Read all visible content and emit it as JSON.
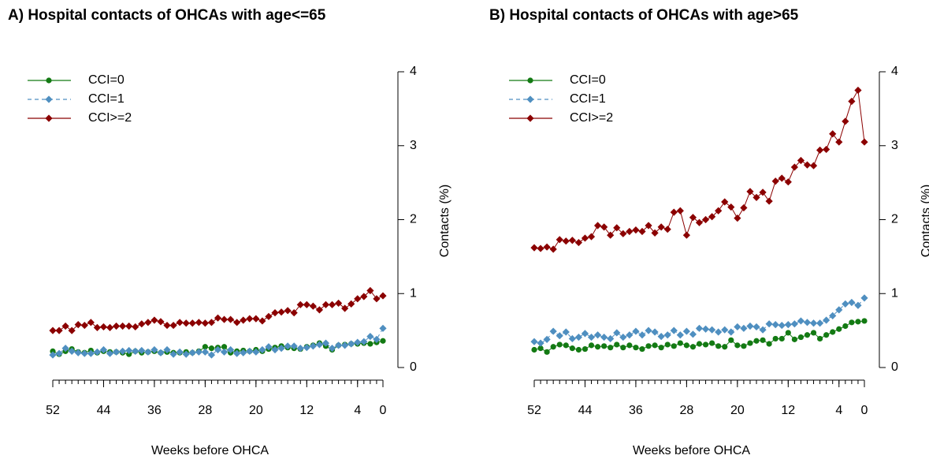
{
  "chart_data": [
    {
      "type": "line",
      "title": "A) Hospital contacts of OHCAs with age<=65",
      "x_label": "Weeks before OHCA",
      "y_label": "Contacts (%)",
      "x": [
        52,
        51,
        50,
        49,
        48,
        47,
        46,
        45,
        44,
        43,
        42,
        41,
        40,
        39,
        38,
        37,
        36,
        35,
        34,
        33,
        32,
        31,
        30,
        29,
        28,
        27,
        26,
        25,
        24,
        23,
        22,
        21,
        20,
        19,
        18,
        17,
        16,
        15,
        14,
        13,
        12,
        11,
        10,
        9,
        8,
        7,
        6,
        5,
        4,
        3,
        2,
        1,
        0
      ],
      "xlim": [
        52,
        0
      ],
      "xticks": [
        52,
        44,
        36,
        28,
        20,
        12,
        4,
        0
      ],
      "ylim": [
        0,
        4
      ],
      "yticks": [
        0,
        1,
        2,
        3,
        4
      ],
      "legend": "top-left",
      "series": [
        {
          "name": "CCI=0",
          "color": "#137a13",
          "values": [
            0.22,
            0.18,
            0.22,
            0.25,
            0.21,
            0.2,
            0.23,
            0.2,
            0.22,
            0.21,
            0.21,
            0.2,
            0.18,
            0.22,
            0.2,
            0.21,
            0.22,
            0.2,
            0.21,
            0.2,
            0.2,
            0.21,
            0.2,
            0.22,
            0.28,
            0.26,
            0.27,
            0.28,
            0.2,
            0.22,
            0.23,
            0.22,
            0.24,
            0.22,
            0.25,
            0.27,
            0.29,
            0.27,
            0.26,
            0.25,
            0.28,
            0.3,
            0.33,
            0.29,
            0.24,
            0.3,
            0.31,
            0.32,
            0.32,
            0.33,
            0.32,
            0.34,
            0.36
          ]
        },
        {
          "name": "CCI=1",
          "color": "#4f8fc0",
          "values": [
            0.17,
            0.19,
            0.26,
            0.22,
            0.2,
            0.19,
            0.19,
            0.21,
            0.24,
            0.19,
            0.21,
            0.22,
            0.23,
            0.22,
            0.23,
            0.21,
            0.24,
            0.2,
            0.24,
            0.18,
            0.21,
            0.18,
            0.2,
            0.21,
            0.21,
            0.17,
            0.24,
            0.21,
            0.24,
            0.19,
            0.2,
            0.22,
            0.21,
            0.24,
            0.28,
            0.24,
            0.26,
            0.29,
            0.29,
            0.26,
            0.27,
            0.29,
            0.31,
            0.33,
            0.26,
            0.3,
            0.3,
            0.32,
            0.34,
            0.35,
            0.42,
            0.38,
            0.53
          ]
        },
        {
          "name": "CCI>=2",
          "color": "#8b0000",
          "values": [
            0.5,
            0.5,
            0.56,
            0.5,
            0.58,
            0.57,
            0.61,
            0.54,
            0.55,
            0.54,
            0.56,
            0.56,
            0.56,
            0.55,
            0.59,
            0.61,
            0.64,
            0.62,
            0.57,
            0.57,
            0.61,
            0.6,
            0.6,
            0.61,
            0.6,
            0.61,
            0.67,
            0.65,
            0.65,
            0.61,
            0.64,
            0.66,
            0.66,
            0.63,
            0.69,
            0.74,
            0.75,
            0.77,
            0.74,
            0.85,
            0.85,
            0.83,
            0.78,
            0.85,
            0.85,
            0.87,
            0.8,
            0.86,
            0.93,
            0.96,
            1.04,
            0.93,
            0.97
          ]
        }
      ]
    },
    {
      "type": "line",
      "title": "B) Hospital contacts of OHCAs with age>65",
      "x_label": "Weeks before OHCA",
      "y_label": "Contacts (%)",
      "x": [
        52,
        51,
        50,
        49,
        48,
        47,
        46,
        45,
        44,
        43,
        42,
        41,
        40,
        39,
        38,
        37,
        36,
        35,
        34,
        33,
        32,
        31,
        30,
        29,
        28,
        27,
        26,
        25,
        24,
        23,
        22,
        21,
        20,
        19,
        18,
        17,
        16,
        15,
        14,
        13,
        12,
        11,
        10,
        9,
        8,
        7,
        6,
        5,
        4,
        3,
        2,
        1,
        0
      ],
      "xlim": [
        52,
        0
      ],
      "xticks": [
        52,
        44,
        36,
        28,
        20,
        12,
        4,
        0
      ],
      "ylim": [
        0,
        4
      ],
      "yticks": [
        0,
        1,
        2,
        3,
        4
      ],
      "legend": "top-left",
      "series": [
        {
          "name": "CCI=0",
          "color": "#137a13",
          "values": [
            0.24,
            0.26,
            0.21,
            0.28,
            0.31,
            0.3,
            0.26,
            0.24,
            0.25,
            0.3,
            0.28,
            0.29,
            0.27,
            0.31,
            0.27,
            0.3,
            0.27,
            0.25,
            0.29,
            0.3,
            0.27,
            0.31,
            0.29,
            0.33,
            0.3,
            0.28,
            0.32,
            0.31,
            0.33,
            0.29,
            0.28,
            0.37,
            0.3,
            0.29,
            0.33,
            0.36,
            0.37,
            0.32,
            0.39,
            0.39,
            0.47,
            0.38,
            0.41,
            0.44,
            0.47,
            0.39,
            0.44,
            0.48,
            0.52,
            0.56,
            0.61,
            0.62,
            0.63
          ]
        },
        {
          "name": "CCI=1",
          "color": "#4f8fc0",
          "values": [
            0.35,
            0.33,
            0.38,
            0.49,
            0.43,
            0.48,
            0.39,
            0.41,
            0.46,
            0.41,
            0.44,
            0.41,
            0.39,
            0.47,
            0.41,
            0.44,
            0.49,
            0.44,
            0.5,
            0.48,
            0.42,
            0.44,
            0.5,
            0.44,
            0.49,
            0.45,
            0.53,
            0.52,
            0.51,
            0.48,
            0.51,
            0.48,
            0.55,
            0.53,
            0.56,
            0.55,
            0.51,
            0.59,
            0.58,
            0.57,
            0.58,
            0.59,
            0.63,
            0.61,
            0.6,
            0.6,
            0.64,
            0.7,
            0.78,
            0.86,
            0.88,
            0.84,
            0.94
          ]
        },
        {
          "name": "CCI>=2",
          "color": "#8b0000",
          "values": [
            1.62,
            1.61,
            1.63,
            1.6,
            1.73,
            1.71,
            1.72,
            1.69,
            1.75,
            1.77,
            1.92,
            1.9,
            1.79,
            1.89,
            1.81,
            1.84,
            1.86,
            1.84,
            1.92,
            1.82,
            1.9,
            1.87,
            2.1,
            2.12,
            1.79,
            2.03,
            1.96,
            2.0,
            2.04,
            2.12,
            2.24,
            2.17,
            2.02,
            2.16,
            2.38,
            2.3,
            2.37,
            2.25,
            2.52,
            2.56,
            2.51,
            2.71,
            2.8,
            2.74,
            2.73,
            2.94,
            2.95,
            3.16,
            3.05,
            3.33,
            3.6,
            3.75,
            3.05
          ]
        }
      ]
    }
  ]
}
